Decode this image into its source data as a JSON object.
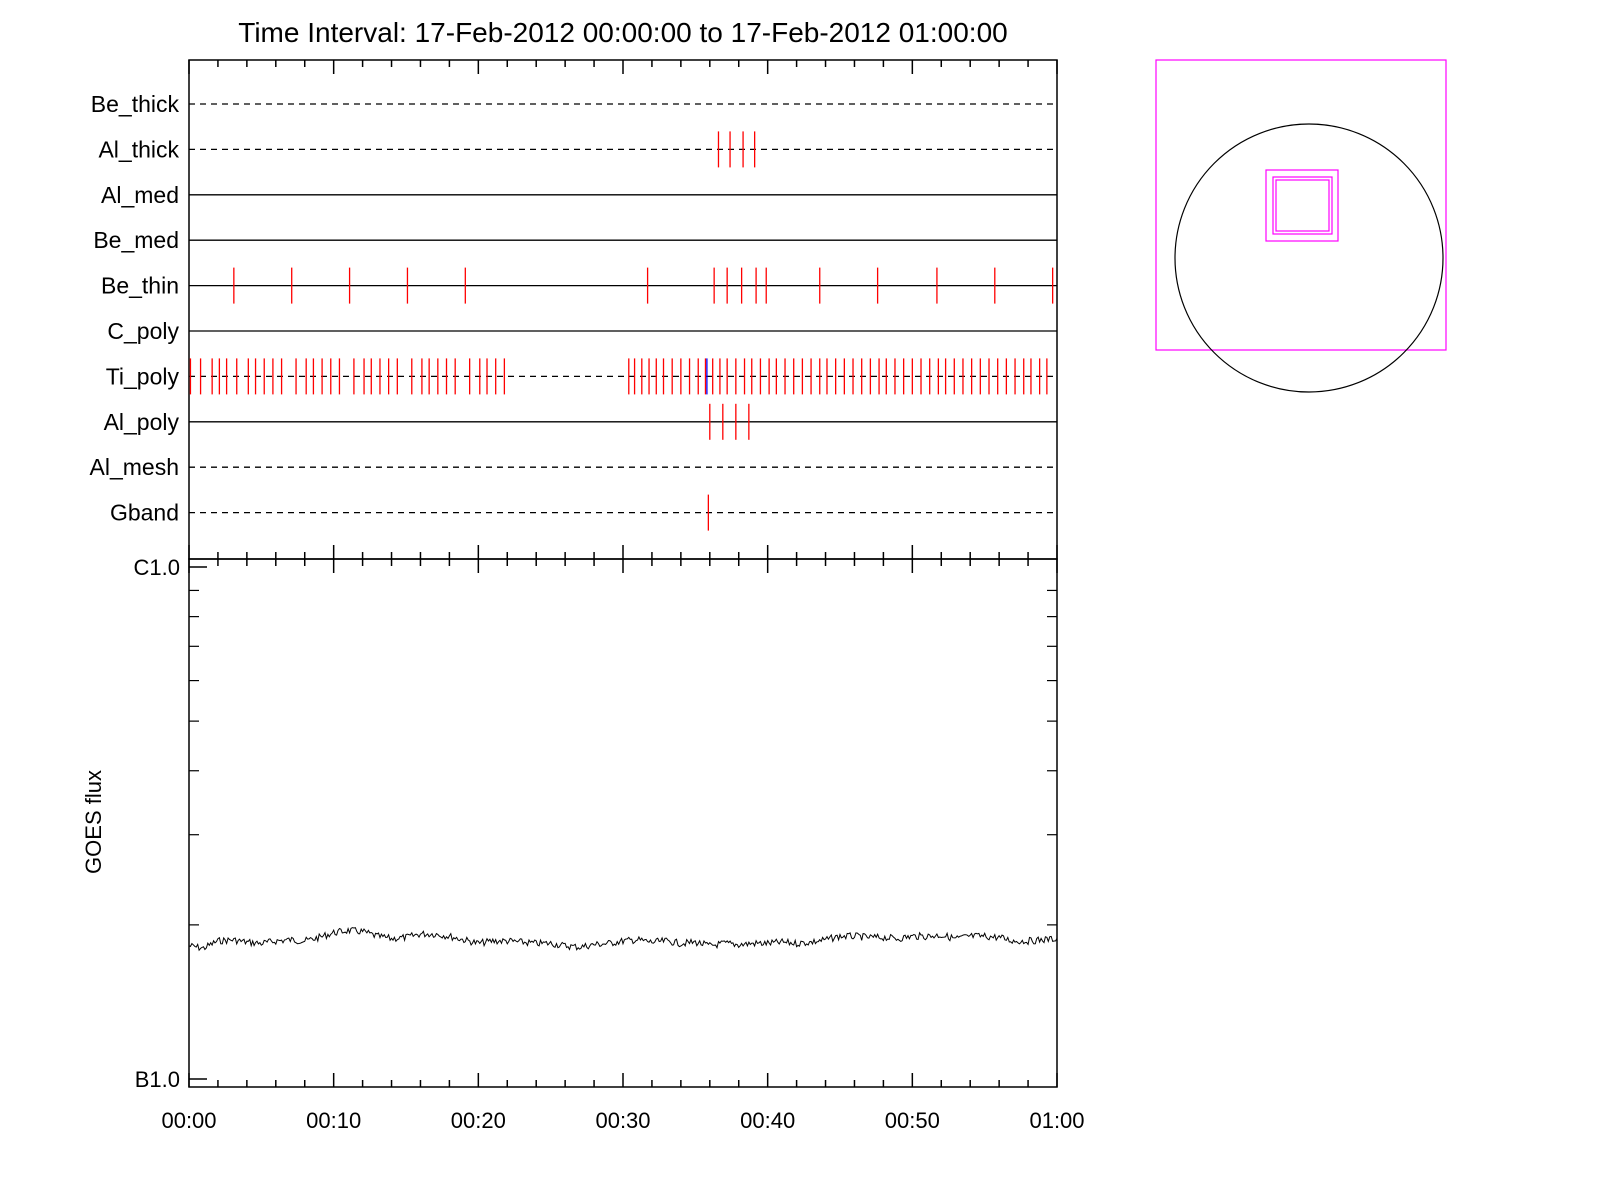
{
  "title": "Time Interval: 17-Feb-2012 00:00:00 to 17-Feb-2012 01:00:00",
  "colors": {
    "frame": "#000000",
    "filter_tick": "#ff0000",
    "blue_tick": "#0000ff",
    "fov": "#ff00ff",
    "sun_disk": "#000000"
  },
  "chart_data": [
    {
      "type": "timeline",
      "xunit": "minutes",
      "xlim": [
        0,
        60
      ],
      "x_tick_labels": [
        "00:00",
        "00:10",
        "00:20",
        "00:30",
        "00:40",
        "00:50",
        "01:00"
      ],
      "rows": [
        {
          "name": "Be_thick",
          "line": "dashed",
          "exposures": []
        },
        {
          "name": "Al_thick",
          "line": "dashed",
          "exposures": [
            36.6,
            37.4,
            38.3,
            39.1
          ]
        },
        {
          "name": "Al_med",
          "line": "solid",
          "exposures": []
        },
        {
          "name": "Be_med",
          "line": "solid",
          "exposures": []
        },
        {
          "name": "Be_thin",
          "line": "solid",
          "exposures": [
            3.1,
            7.1,
            11.1,
            15.1,
            19.1,
            31.7,
            36.3,
            37.2,
            38.2,
            39.2,
            39.9,
            43.6,
            47.6,
            51.7,
            55.7,
            59.7
          ]
        },
        {
          "name": "C_poly",
          "line": "solid",
          "exposures": []
        },
        {
          "name": "Ti_poly",
          "line": "dashed",
          "exposures": [
            0.1,
            0.8,
            1.6,
            2.1,
            2.6,
            3.3,
            4.1,
            4.6,
            5.2,
            5.8,
            6.4,
            7.4,
            8.1,
            8.6,
            9.2,
            9.8,
            10.4,
            11.4,
            12.1,
            12.6,
            13.2,
            13.8,
            14.4,
            15.4,
            16.1,
            16.6,
            17.2,
            17.8,
            18.4,
            19.4,
            20.1,
            20.6,
            21.2,
            21.8,
            30.4,
            30.8,
            31.3,
            31.8,
            32.3,
            32.8,
            33.4,
            34.0,
            34.6,
            35.2,
            35.7,
            36.2,
            36.7,
            37.2,
            37.8,
            38.4,
            38.9,
            39.5,
            40.1,
            40.6,
            41.2,
            41.8,
            42.4,
            43.0,
            43.6,
            44.1,
            44.7,
            45.3,
            45.9,
            46.5,
            47.1,
            47.7,
            48.2,
            48.8,
            49.4,
            50.0,
            50.6,
            51.2,
            51.8,
            52.3,
            52.9,
            53.5,
            54.1,
            54.7,
            55.3,
            55.9,
            56.5,
            57.1,
            57.7,
            58.2,
            58.8,
            59.3
          ],
          "blue_exposures": [
            35.8
          ]
        },
        {
          "name": "Al_poly",
          "line": "solid",
          "exposures": [
            36.0,
            36.9,
            37.8,
            38.7
          ]
        },
        {
          "name": "Al_mesh",
          "line": "dashed",
          "exposures": []
        },
        {
          "name": "Gband",
          "line": "dashed",
          "exposures": [
            35.9
          ]
        }
      ]
    },
    {
      "type": "line",
      "ylabel": "GOES flux",
      "y_scale": "log",
      "ylim": [
        1e-07,
        1e-06
      ],
      "y_tick_labels": [
        "B1.0",
        "C1.0"
      ],
      "xunit": "minutes",
      "xlim": [
        0,
        60
      ],
      "x_tick_labels": [
        "00:00",
        "00:10",
        "00:20",
        "00:30",
        "00:40",
        "00:50",
        "01:00"
      ],
      "series": [
        {
          "x": [
            0,
            1,
            2,
            3,
            4,
            5,
            6,
            7,
            8,
            9,
            10,
            11,
            12,
            13,
            14,
            15,
            16,
            17,
            18,
            19,
            20,
            21,
            22,
            23,
            24,
            25,
            26,
            27,
            28,
            29,
            30,
            31,
            32,
            33,
            34,
            35,
            36,
            37,
            38,
            39,
            40,
            41,
            42,
            43,
            44,
            45,
            46,
            47,
            48,
            49,
            50,
            51,
            52,
            53,
            54,
            55,
            56,
            57,
            58,
            59,
            60
          ],
          "y": [
            1.82e-07,
            1.8e-07,
            1.86e-07,
            1.87e-07,
            1.85e-07,
            1.84e-07,
            1.86e-07,
            1.87e-07,
            1.86e-07,
            1.89e-07,
            1.93e-07,
            1.95e-07,
            1.94e-07,
            1.9e-07,
            1.88e-07,
            1.89e-07,
            1.92e-07,
            1.92e-07,
            1.9e-07,
            1.87e-07,
            1.84e-07,
            1.86e-07,
            1.86e-07,
            1.85e-07,
            1.84e-07,
            1.84e-07,
            1.82e-07,
            1.81e-07,
            1.83e-07,
            1.84e-07,
            1.86e-07,
            1.87e-07,
            1.85e-07,
            1.86e-07,
            1.84e-07,
            1.85e-07,
            1.82e-07,
            1.84e-07,
            1.83e-07,
            1.84e-07,
            1.84e-07,
            1.85e-07,
            1.84e-07,
            1.85e-07,
            1.87e-07,
            1.9e-07,
            1.9e-07,
            1.89e-07,
            1.89e-07,
            1.88e-07,
            1.9e-07,
            1.9e-07,
            1.91e-07,
            1.88e-07,
            1.9e-07,
            1.9e-07,
            1.89e-07,
            1.86e-07,
            1.86e-07,
            1.87e-07,
            1.88e-07
          ]
        }
      ]
    }
  ],
  "fov_panel": {
    "fields_of_view": 3
  }
}
